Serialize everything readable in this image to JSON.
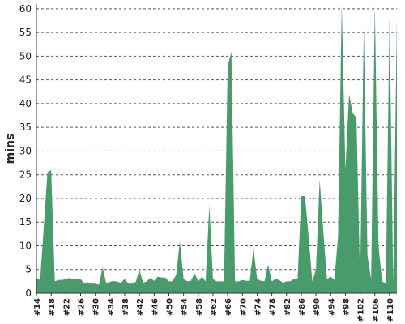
{
  "chart_data": {
    "type": "area",
    "ylabel": "mins",
    "ylim": [
      0,
      61
    ],
    "y_ticks": [
      "0",
      "5",
      "10",
      "15",
      "20",
      "25",
      "30",
      "35",
      "40",
      "45",
      "50",
      "55",
      "60"
    ],
    "x_tick_labels": [
      "#14",
      "#18",
      "#22",
      "#26",
      "#30",
      "#34",
      "#38",
      "#42",
      "#46",
      "#50",
      "#54",
      "#58",
      "#62",
      "#66",
      "#70",
      "#74",
      "#78",
      "#82",
      "#86",
      "#90",
      "#94",
      "#98",
      "#102",
      "#106",
      "#110"
    ],
    "grid": true,
    "series": [
      {
        "color": "#4a9b6b",
        "x": [
          14,
          15,
          16,
          17,
          18,
          19,
          20,
          21,
          22,
          23,
          24,
          25,
          26,
          27,
          28,
          29,
          30,
          31,
          32,
          33,
          34,
          35,
          36,
          37,
          38,
          39,
          40,
          41,
          42,
          43,
          44,
          45,
          46,
          47,
          48,
          49,
          50,
          51,
          52,
          53,
          54,
          55,
          56,
          57,
          58,
          59,
          60,
          61,
          62,
          63,
          64,
          65,
          66,
          67,
          68,
          69,
          70,
          71,
          72,
          73,
          74,
          75,
          76,
          77,
          78,
          79,
          80,
          81,
          82,
          83,
          84,
          85,
          86,
          87,
          88,
          89,
          90,
          91,
          92,
          93,
          94,
          95,
          96,
          97,
          98,
          99,
          100,
          101,
          102,
          103,
          104,
          105,
          106,
          107,
          108,
          109,
          110,
          111,
          112
        ],
        "values": [
          3.2,
          2.8,
          14,
          25.5,
          26,
          2.5,
          2.8,
          2.8,
          3,
          3.2,
          2.9,
          2.9,
          3,
          2,
          2.3,
          2,
          2,
          1.8,
          5.5,
          2,
          2.4,
          2.6,
          2.4,
          2.2,
          3,
          2,
          2,
          2.4,
          5,
          2.2,
          2.5,
          3.2,
          2.6,
          3.5,
          3.3,
          3.3,
          2.5,
          2.5,
          3.9,
          11,
          3,
          2.5,
          2.6,
          4.2,
          2.5,
          3.5,
          2.5,
          18.5,
          3,
          2.5,
          2.5,
          2.5,
          48,
          51,
          2.5,
          2.5,
          2.8,
          2.6,
          2.6,
          9.5,
          3,
          2.6,
          2.5,
          6,
          2.5,
          3,
          2.8,
          2.2,
          2.5,
          2.5,
          3,
          3,
          20.5,
          20.5,
          12,
          2.5,
          5,
          24,
          13,
          3,
          3.5,
          2.8,
          12,
          62,
          26,
          42,
          38,
          37,
          2.5,
          56,
          8,
          3,
          65,
          10,
          2.5,
          2,
          58,
          2,
          58
        ]
      }
    ]
  }
}
